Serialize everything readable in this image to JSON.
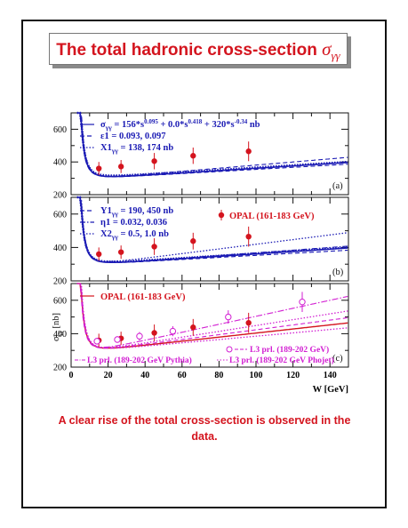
{
  "title": {
    "text": "The total hadronic cross-section",
    "symbol": "σ",
    "subscript": "γγ"
  },
  "caption": "A clear rise of the total cross-section is observed in the data.",
  "colors": {
    "red": "#d4141e",
    "blue": "#1a1ab4",
    "magenta": "#d21ed2",
    "black": "#111111"
  },
  "chart_data": [
    {
      "type": "line",
      "panel": "a",
      "ylim": [
        200,
        700
      ],
      "xlim": [
        0,
        150
      ],
      "yticks": [
        200,
        400,
        600
      ],
      "legend": [
        {
          "style": "solid",
          "text": "σγγ = 156*s^0.095 + 0.0*s^0.418 + 320*s^-0.34 nb"
        },
        {
          "style": "dashed",
          "text": "ε1 = 0.093, 0.097"
        },
        {
          "style": "dotted",
          "text": "X1γγ = 138, 174 nb"
        }
      ],
      "series": [
        {
          "name": "OPAL (161-183 GeV)",
          "x": [
            15,
            27,
            45,
            66,
            96
          ],
          "y": [
            360,
            372,
            405,
            438,
            465
          ],
          "err": [
            40,
            40,
            50,
            50,
            60
          ]
        }
      ],
      "label": "(a)"
    },
    {
      "type": "line",
      "panel": "b",
      "ylim": [
        200,
        700
      ],
      "xlim": [
        0,
        150
      ],
      "yticks": [
        200,
        400,
        600
      ],
      "legend": [
        {
          "style": "dashed",
          "text": "Y1γγ = 190, 450 nb"
        },
        {
          "style": "dashdot",
          "text": "η1 = 0.032, 0.036"
        },
        {
          "style": "dotted",
          "text": "X2γγ = 0.5, 1.0 nb"
        },
        {
          "style": "marker",
          "text": "OPAL (161-183 GeV)"
        }
      ],
      "series": [
        {
          "name": "OPAL (161-183 GeV)",
          "x": [
            15,
            27,
            45,
            66,
            96
          ],
          "y": [
            360,
            372,
            405,
            438,
            465
          ],
          "err": [
            40,
            40,
            50,
            50,
            60
          ]
        }
      ],
      "label": "(b)"
    },
    {
      "type": "line",
      "panel": "c",
      "ylim": [
        200,
        700
      ],
      "xlim": [
        0,
        150
      ],
      "yticks": [
        200,
        400,
        600
      ],
      "xticks": [
        0,
        20,
        40,
        60,
        80,
        100,
        120,
        140
      ],
      "xlabel": "W [GeV]",
      "ylabel": "σγγ [nb]",
      "legend": [
        {
          "style": "solid",
          "text": "OPAL (161-183 GeV)"
        },
        {
          "style": "open-marker",
          "text": "L3 prl. (189-202 GeV)"
        },
        {
          "style": "dashdot",
          "text": "L3 prl. (189-202 GeV Pythia)"
        },
        {
          "style": "dotted",
          "text": "L3 prl. (189-202 GeV Phojet)"
        }
      ],
      "series": [
        {
          "name": "OPAL (161-183 GeV)",
          "x": [
            15,
            27,
            45,
            66,
            96
          ],
          "y": [
            360,
            372,
            405,
            438,
            465
          ],
          "err": [
            40,
            40,
            50,
            50,
            60
          ]
        },
        {
          "name": "L3 prl. (189-202 GeV)",
          "x": [
            14,
            25,
            37,
            55,
            85,
            125
          ],
          "y": [
            355,
            365,
            385,
            415,
            500,
            590
          ],
          "err": [
            20,
            20,
            25,
            30,
            40,
            60
          ]
        }
      ],
      "label": "(c)"
    }
  ]
}
